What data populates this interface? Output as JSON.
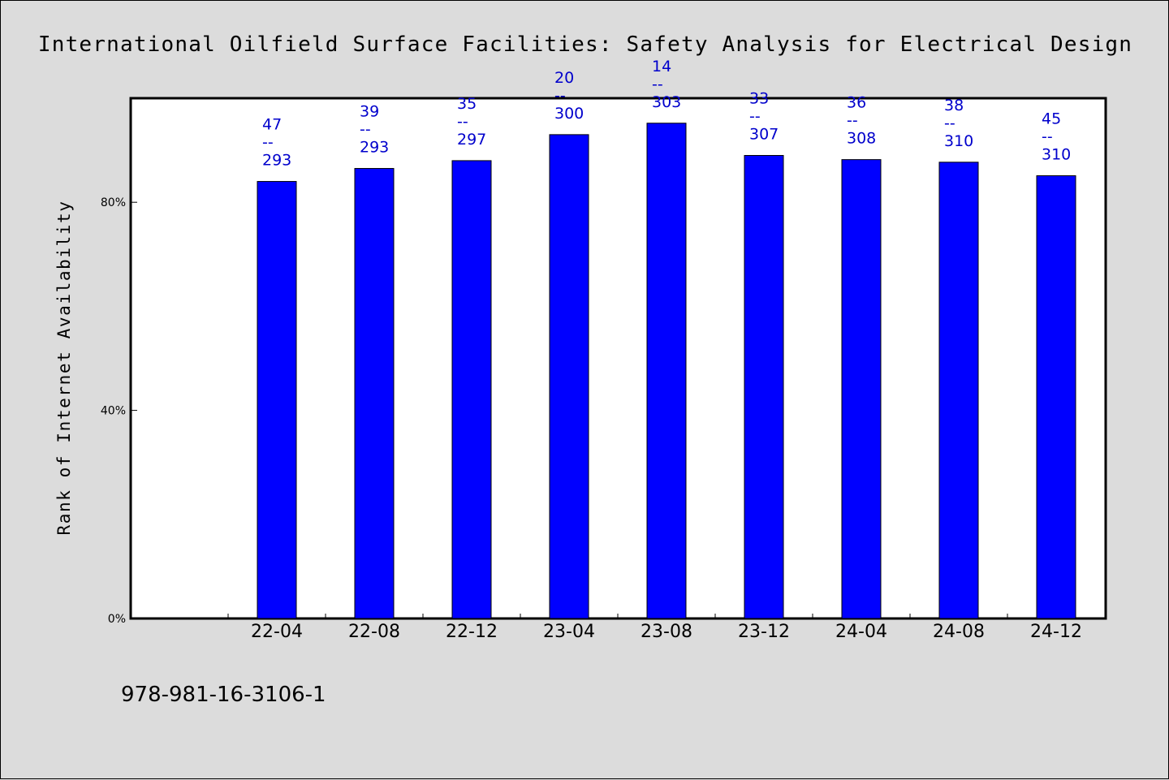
{
  "chart_data": {
    "type": "bar",
    "title": "International Oilfield Surface Facilities: Safety Analysis for Electrical Design",
    "ylabel": "Rank of Internet Availability",
    "xlabel": "",
    "categories": [
      "22-04",
      "22-08",
      "22-12",
      "23-04",
      "23-08",
      "23-12",
      "24-04",
      "24-08",
      "24-12"
    ],
    "values": [
      84,
      86.5,
      88,
      93,
      95.2,
      89,
      88.2,
      87.7,
      85.1
    ],
    "data_labels": [
      [
        "47",
        "--",
        "293"
      ],
      [
        "39",
        "--",
        "293"
      ],
      [
        "35",
        "--",
        "297"
      ],
      [
        "20",
        "--",
        "300"
      ],
      [
        "14",
        "--",
        "303"
      ],
      [
        "33",
        "--",
        "307"
      ],
      [
        "36",
        "--",
        "308"
      ],
      [
        "38",
        "--",
        "310"
      ],
      [
        "45",
        "--",
        "310"
      ]
    ],
    "yticks": [
      {
        "value": 0,
        "label": "0%"
      },
      {
        "value": 40,
        "label": "40%"
      },
      {
        "value": 80,
        "label": "80%"
      }
    ],
    "ylim": [
      0,
      100
    ],
    "grid": false,
    "bar_color": "#0000ff",
    "label_color": "#0000cc"
  },
  "footer": "978-981-16-3106-1"
}
